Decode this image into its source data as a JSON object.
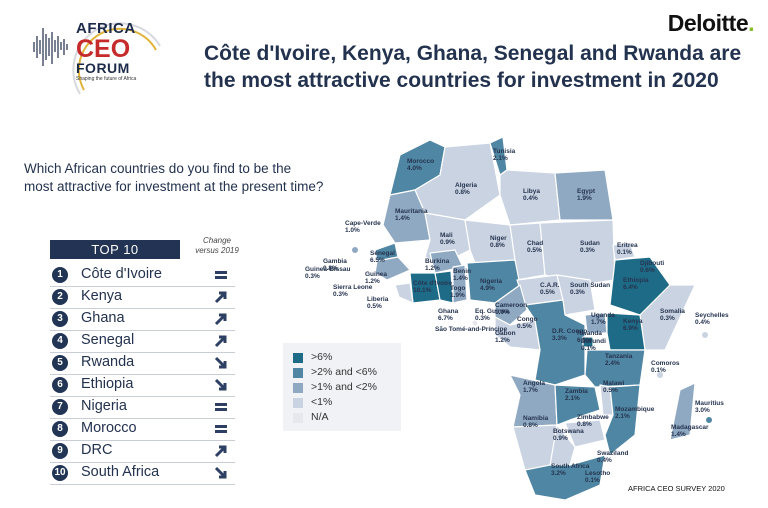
{
  "logo": {
    "africa": "AFRICA",
    "ceo": "CEO",
    "forum": "FORUM",
    "tagline": "Shaping the future of Africa"
  },
  "brand": {
    "name": "Deloitte",
    "dot": "."
  },
  "headline": "Côte d'Ivoire, Kenya, Ghana, Senegal and Rwanda are the most attractive countries for investment in 2020",
  "question": "Which African countries do you find to be the most attractive for investment at the present time?",
  "table": {
    "header": "TOP 10",
    "change_header": "Change versus 2019",
    "rows": [
      {
        "rank": "1",
        "country": "Côte d'Ivoire",
        "change": "same"
      },
      {
        "rank": "2",
        "country": "Kenya",
        "change": "up"
      },
      {
        "rank": "3",
        "country": "Ghana",
        "change": "up"
      },
      {
        "rank": "4",
        "country": "Senegal",
        "change": "up"
      },
      {
        "rank": "5",
        "country": "Rwanda",
        "change": "down"
      },
      {
        "rank": "6",
        "country": "Ethiopia",
        "change": "down"
      },
      {
        "rank": "7",
        "country": "Nigeria",
        "change": "same"
      },
      {
        "rank": "8",
        "country": "Morocco",
        "change": "same"
      },
      {
        "rank": "9",
        "country": "DRC",
        "change": "up"
      },
      {
        "rank": "10",
        "country": "South Africa",
        "change": "down"
      }
    ]
  },
  "legend": [
    {
      "label": ">6%",
      "color": "#1e6b87"
    },
    {
      "label": ">2% and <6%",
      "color": "#4f86a3"
    },
    {
      "label": ">1% and <2%",
      "color": "#8fa9c2"
    },
    {
      "label": "<1%",
      "color": "#c9d3e2"
    },
    {
      "label": "N/A",
      "color": "#e6e8ee"
    }
  ],
  "colors": {
    "navy": "#233353",
    "accent_red": "#c62b2b",
    "deloitte_green": "#86bc25"
  },
  "countries": [
    {
      "name": "Tunisia",
      "value": "2.1%"
    },
    {
      "name": "Morocco",
      "value": "4.0%"
    },
    {
      "name": "Algeria",
      "value": "0.8%"
    },
    {
      "name": "Libya",
      "value": "0.4%"
    },
    {
      "name": "Egypt",
      "value": "1.9%"
    },
    {
      "name": "Cape-Verde",
      "value": "1.0%"
    },
    {
      "name": "Mauritania",
      "value": "1.4%"
    },
    {
      "name": "Mali",
      "value": "0.9%"
    },
    {
      "name": "Niger",
      "value": "0.8%"
    },
    {
      "name": "Chad",
      "value": "0.5%"
    },
    {
      "name": "Sudan",
      "value": "0.3%"
    },
    {
      "name": "Eritrea",
      "value": "0.1%"
    },
    {
      "name": "Djibouti",
      "value": "0.6%"
    },
    {
      "name": "Senegal",
      "value": "6.5%"
    },
    {
      "name": "Gambia",
      "value": "0.8%"
    },
    {
      "name": "Guinea-Bissau",
      "value": "0.3%"
    },
    {
      "name": "Guinea",
      "value": "1.2%"
    },
    {
      "name": "Burkina",
      "value": "1.2%"
    },
    {
      "name": "Benin",
      "value": "1.4%"
    },
    {
      "name": "Nigeria",
      "value": "4.9%"
    },
    {
      "name": "Sierra Leone",
      "value": "0.3%"
    },
    {
      "name": "Liberia",
      "value": "0.5%"
    },
    {
      "name": "Côte d'Ivoire",
      "value": "10.1%"
    },
    {
      "name": "Togo",
      "value": "1.9%"
    },
    {
      "name": "Ghana",
      "value": "6.7%"
    },
    {
      "name": "C.A.R.",
      "value": "0.5%"
    },
    {
      "name": "South Sudan",
      "value": "0.3%"
    },
    {
      "name": "Ethiopia",
      "value": "6.4%"
    },
    {
      "name": "Somalia",
      "value": "0.3%"
    },
    {
      "name": "Cameroon",
      "value": "1.9%"
    },
    {
      "name": "Eq. Guinea",
      "value": "0.3%"
    },
    {
      "name": "Gabon",
      "value": "1.2%"
    },
    {
      "name": "Congo",
      "value": "0.5%"
    },
    {
      "name": "São Tomé-and-Príncipe",
      "value": ""
    },
    {
      "name": "Uganda",
      "value": "1.7%"
    },
    {
      "name": "Kenya",
      "value": "6.9%"
    },
    {
      "name": "Rwanda",
      "value": "6.5%"
    },
    {
      "name": "Burundi",
      "value": "0.1%"
    },
    {
      "name": "D.R. Congo",
      "value": "3.3%"
    },
    {
      "name": "Tanzania",
      "value": "2.4%"
    },
    {
      "name": "Seychelles",
      "value": "0.4%"
    },
    {
      "name": "Comoros",
      "value": "0.1%"
    },
    {
      "name": "Angola",
      "value": "1.7%"
    },
    {
      "name": "Zambia",
      "value": "2.1%"
    },
    {
      "name": "Malawi",
      "value": "0.5%"
    },
    {
      "name": "Mozambique",
      "value": "2.1%"
    },
    {
      "name": "Mauritius",
      "value": "3.0%"
    },
    {
      "name": "Madagascar",
      "value": "1.4%"
    },
    {
      "name": "Zimbabwe",
      "value": "0.8%"
    },
    {
      "name": "Namibia",
      "value": "0.8%"
    },
    {
      "name": "Botswana",
      "value": "0.9%"
    },
    {
      "name": "Swaziland",
      "value": "0.4%"
    },
    {
      "name": "South Africa",
      "value": "3.2%"
    },
    {
      "name": "Lesotho",
      "value": "0.1%"
    }
  ],
  "source": "AFRICA CEO SURVEY 2020"
}
